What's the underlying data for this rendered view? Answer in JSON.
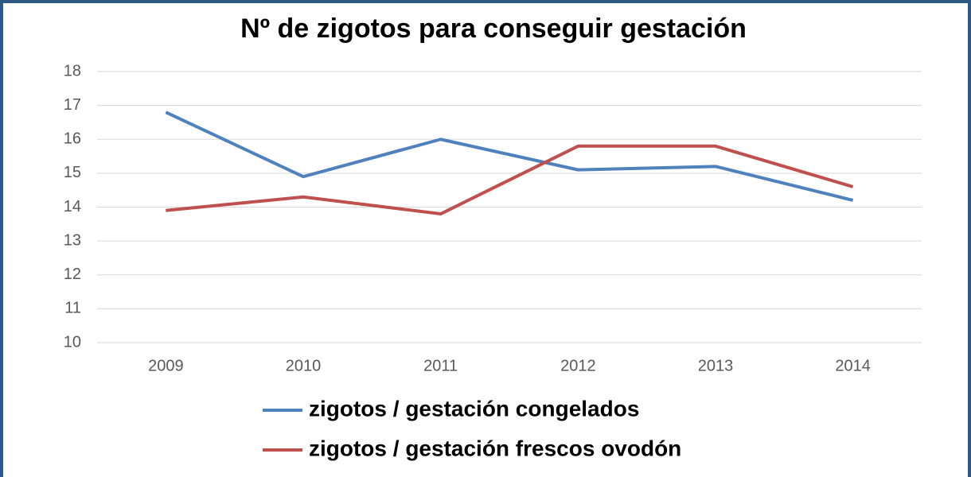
{
  "chart_data": {
    "type": "line",
    "title": "Nº de zigotos para conseguir gestación",
    "categories": [
      "2009",
      "2010",
      "2011",
      "2012",
      "2013",
      "2014"
    ],
    "series": [
      {
        "name": "zigotos / gestación congelados",
        "color": "#4f81bd",
        "values": [
          16.8,
          14.9,
          16.0,
          15.1,
          15.2,
          14.2
        ]
      },
      {
        "name": "zigotos / gestación frescos ovodón",
        "color": "#c0504d",
        "values": [
          13.9,
          14.3,
          13.8,
          15.8,
          15.8,
          14.6
        ]
      }
    ],
    "ylim": [
      10,
      18
    ],
    "yticks": [
      10,
      11,
      12,
      13,
      14,
      15,
      16,
      17,
      18
    ],
    "grid": true
  }
}
